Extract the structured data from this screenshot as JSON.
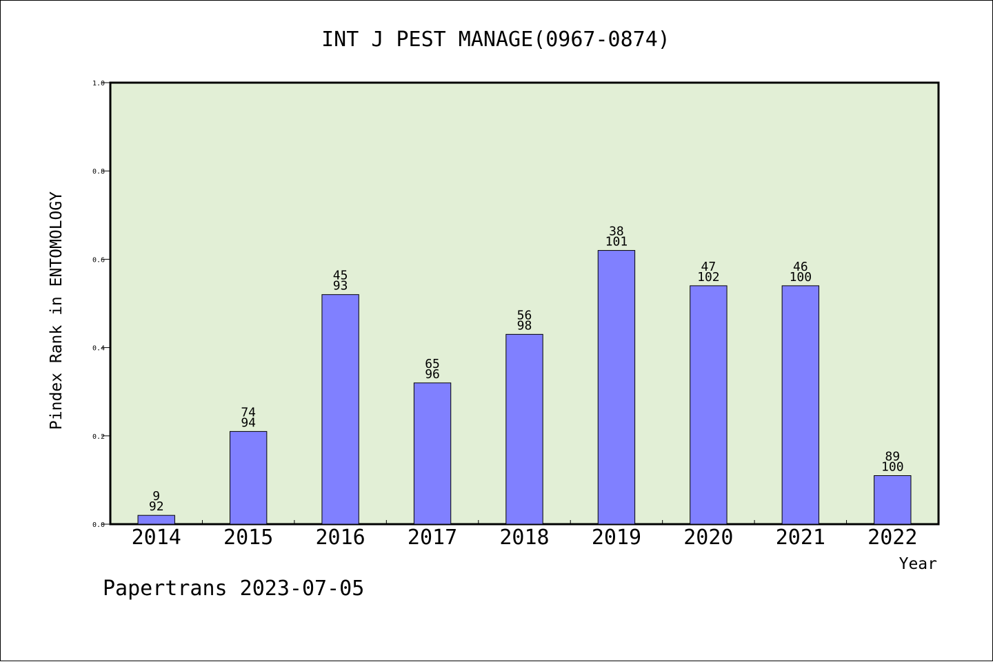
{
  "chart_data": {
    "type": "bar",
    "title": "INT J PEST MANAGE(0967-0874)",
    "xlabel": "Year",
    "ylabel": "Pindex Rank in ENTOMOLOGY",
    "categories": [
      "2014",
      "2015",
      "2016",
      "2017",
      "2018",
      "2019",
      "2020",
      "2021",
      "2022"
    ],
    "values": [
      0.02,
      0.21,
      0.52,
      0.32,
      0.43,
      0.62,
      0.54,
      0.54,
      0.11
    ],
    "ranks": [
      "9",
      "74",
      "45",
      "65",
      "56",
      "38",
      "47",
      "46",
      "89"
    ],
    "totals": [
      "92",
      "94",
      "93",
      "96",
      "98",
      "101",
      "102",
      "100",
      "100"
    ],
    "ylim": [
      0,
      1.0
    ],
    "yticks": [
      "0.0",
      "0.2",
      "0.4",
      "0.6",
      "0.8",
      "1.0"
    ],
    "grid": false,
    "bar_color": "#8080ff",
    "plot_background": "#e2efd6"
  },
  "footer": "Papertrans 2023-07-05"
}
